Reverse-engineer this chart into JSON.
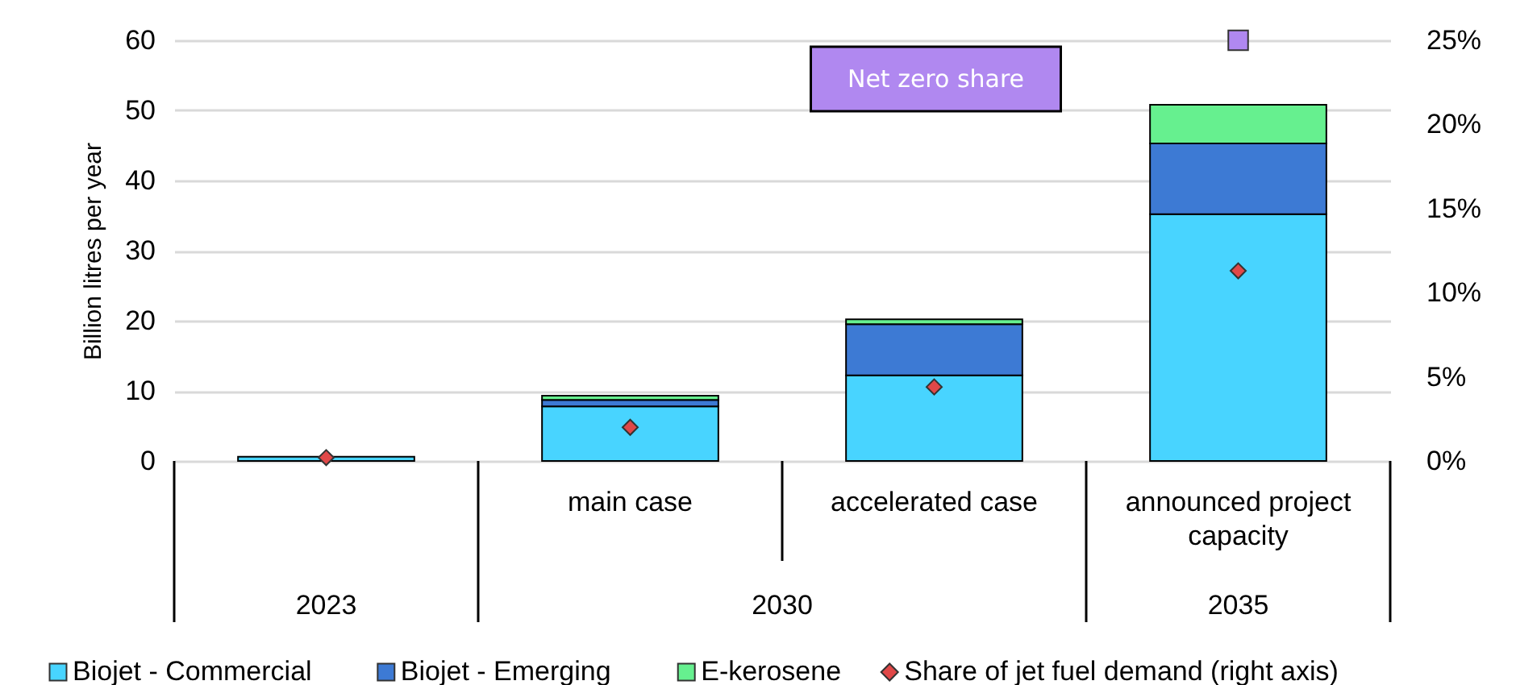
{
  "chart_data": {
    "type": "bar",
    "stacked": true,
    "categories": [
      null,
      "main case",
      "accelerated case",
      "announced project capacity"
    ],
    "series": [
      {
        "name": "Biojet - Commercial",
        "color": "#48d4ff",
        "values": [
          0.6,
          7.8,
          12.2,
          35.2
        ]
      },
      {
        "name": "Biojet - Emerging",
        "color": "#3d7ad4",
        "values": [
          null,
          0.9,
          7.3,
          10.1
        ]
      },
      {
        "name": "E-kerosene",
        "color": "#66f08f",
        "values": [
          null,
          0.6,
          0.7,
          5.5
        ]
      },
      {
        "name": "Share of jet fuel demand (right axis)",
        "type": "scatter",
        "axis": "y2",
        "marker": "diamond",
        "color": "#e04848",
        "values": [
          0.2,
          2.0,
          4.4,
          11.3
        ]
      },
      {
        "name": "Net zero share",
        "type": "scatter",
        "axis": "y2",
        "marker": "square",
        "color": "#b088f0",
        "values": [
          null,
          null,
          null,
          25
        ]
      }
    ],
    "ylabel": "Billion litres per year",
    "ylim": [
      0,
      60
    ],
    "yticks": [
      0,
      10,
      20,
      30,
      40,
      50,
      60
    ],
    "y2lim": [
      0,
      25
    ],
    "y2ticks": [
      {
        "value": 0,
        "label": "0%"
      },
      {
        "value": 5,
        "label": "5%"
      },
      {
        "value": 10,
        "label": "10%"
      },
      {
        "value": 15,
        "label": "15%"
      },
      {
        "value": 20,
        "label": "20%"
      },
      {
        "value": 25,
        "label": "25%"
      }
    ],
    "grid": "y",
    "legend": "bottom",
    "annotations": [
      "2023",
      "2030",
      "2035"
    ]
  }
}
